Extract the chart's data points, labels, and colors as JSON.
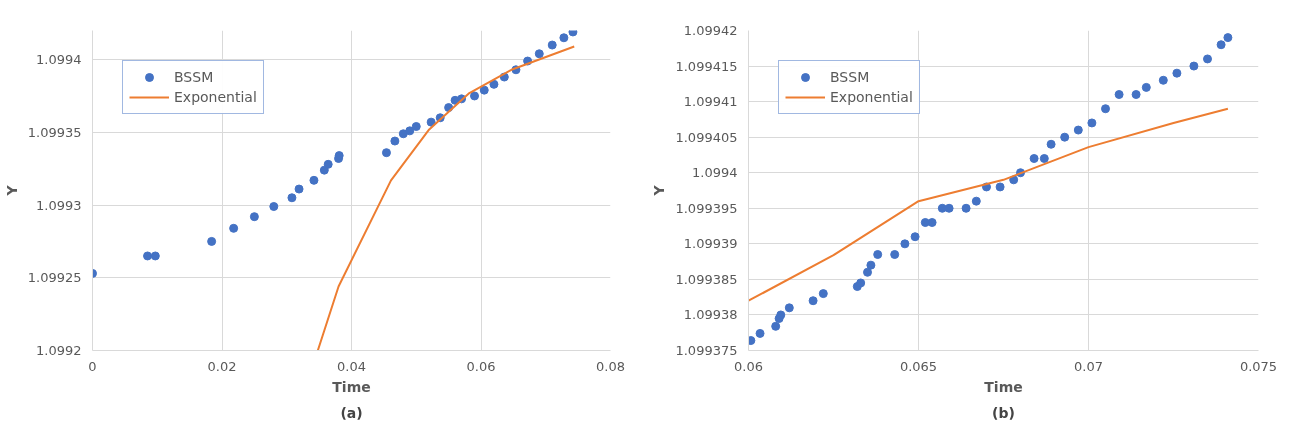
{
  "chart_data": [
    {
      "type": "scatter",
      "xlabel": "Time",
      "ylabel": "Y",
      "xlim": [
        0,
        0.08
      ],
      "ylim": [
        1.0992,
        1.09942
      ],
      "xticks": [
        0,
        0.02,
        0.04,
        0.06,
        0.08
      ],
      "yticks": [
        1.0992,
        1.09925,
        1.0993,
        1.09935,
        1.0994
      ],
      "grid": true,
      "legend": "top left",
      "annotations": [
        "(a)"
      ],
      "series": [
        {
          "name": "BSSM",
          "marker": "circle",
          "color": "#4472c4",
          "x": [
            0,
            0.0085,
            0.0097,
            0.0184,
            0.0218,
            0.025,
            0.028,
            0.0308,
            0.0319,
            0.0342,
            0.0358,
            0.0364,
            0.038,
            0.0381,
            0.0454,
            0.0467,
            0.048,
            0.049,
            0.05,
            0.0523,
            0.0537,
            0.055,
            0.056,
            0.057,
            0.059,
            0.0605,
            0.062,
            0.0636,
            0.0654,
            0.0672,
            0.069,
            0.071,
            0.0728,
            0.0742
          ],
          "values": [
            1.099253,
            1.099265,
            1.099265,
            1.099275,
            1.099284,
            1.099292,
            1.099299,
            1.099305,
            1.099311,
            1.099317,
            1.099324,
            1.099328,
            1.099332,
            1.099334,
            1.099336,
            1.099344,
            1.099349,
            1.099351,
            1.099354,
            1.099357,
            1.09936,
            1.099367,
            1.099372,
            1.099373,
            1.099375,
            1.099379,
            1.099383,
            1.099388,
            1.099393,
            1.099399,
            1.099404,
            1.09941,
            1.099415,
            1.099419
          ]
        },
        {
          "name": "Exponential",
          "type": "line",
          "line_style": "solid",
          "color": "#ed7d31",
          "x": [
            0.0348,
            0.038,
            0.0461,
            0.052,
            0.0582,
            0.0647,
            0.0744
          ],
          "values": [
            1.0992,
            1.099244,
            1.099317,
            1.099352,
            1.099377,
            1.099393,
            1.099409
          ]
        }
      ]
    },
    {
      "type": "scatter",
      "xlabel": "Time",
      "ylabel": "Y",
      "xlim": [
        0.06,
        0.075
      ],
      "ylim": [
        1.099375,
        1.09942
      ],
      "xticks": [
        0.06,
        0.065,
        0.07,
        0.075
      ],
      "yticks": [
        1.099375,
        1.09938,
        1.099385,
        1.09939,
        1.099395,
        1.0994,
        1.099405,
        1.09941,
        1.099415,
        1.09942
      ],
      "grid": true,
      "legend": "top left",
      "annotations": [
        "(b)"
      ],
      "series": [
        {
          "name": "BSSM",
          "marker": "circle",
          "color": "#4472c4",
          "x": [
            0.06007,
            0.06034,
            0.0608,
            0.0609,
            0.06095,
            0.0612,
            0.0619,
            0.0622,
            0.0632,
            0.0633,
            0.0635,
            0.0636,
            0.0638,
            0.0643,
            0.0646,
            0.0649,
            0.0652,
            0.0654,
            0.0657,
            0.0659,
            0.0664,
            0.0667,
            0.067,
            0.0674,
            0.0678,
            0.068,
            0.0684,
            0.0687,
            0.0689,
            0.0693,
            0.0697,
            0.0701,
            0.0705,
            0.0709,
            0.0714,
            0.0717,
            0.0722,
            0.0726,
            0.0731,
            0.0735,
            0.0739,
            0.0741
          ],
          "values": [
            1.0993764,
            1.0993774,
            1.0993784,
            1.0993795,
            1.09938,
            1.099381,
            1.099382,
            1.099383,
            1.099384,
            1.0993845,
            1.099386,
            1.099387,
            1.0993885,
            1.0993885,
            1.09939,
            1.099391,
            1.099393,
            1.099393,
            1.099395,
            1.099395,
            1.099395,
            1.099396,
            1.099398,
            1.099398,
            1.099399,
            1.0994,
            1.099402,
            1.099402,
            1.099404,
            1.099405,
            1.099406,
            1.099407,
            1.099409,
            1.099411,
            1.099411,
            1.099412,
            1.099413,
            1.099414,
            1.099415,
            1.099416,
            1.099418,
            1.099419
          ]
        },
        {
          "name": "Exponential",
          "type": "line",
          "line_style": "solid",
          "color": "#ed7d31",
          "x": [
            0.06,
            0.0625,
            0.065,
            0.0675,
            0.07,
            0.0725,
            0.0741
          ],
          "values": [
            1.099382,
            1.0993884,
            1.099396,
            1.099399,
            1.0994036,
            1.099407,
            1.099409
          ]
        }
      ]
    }
  ]
}
